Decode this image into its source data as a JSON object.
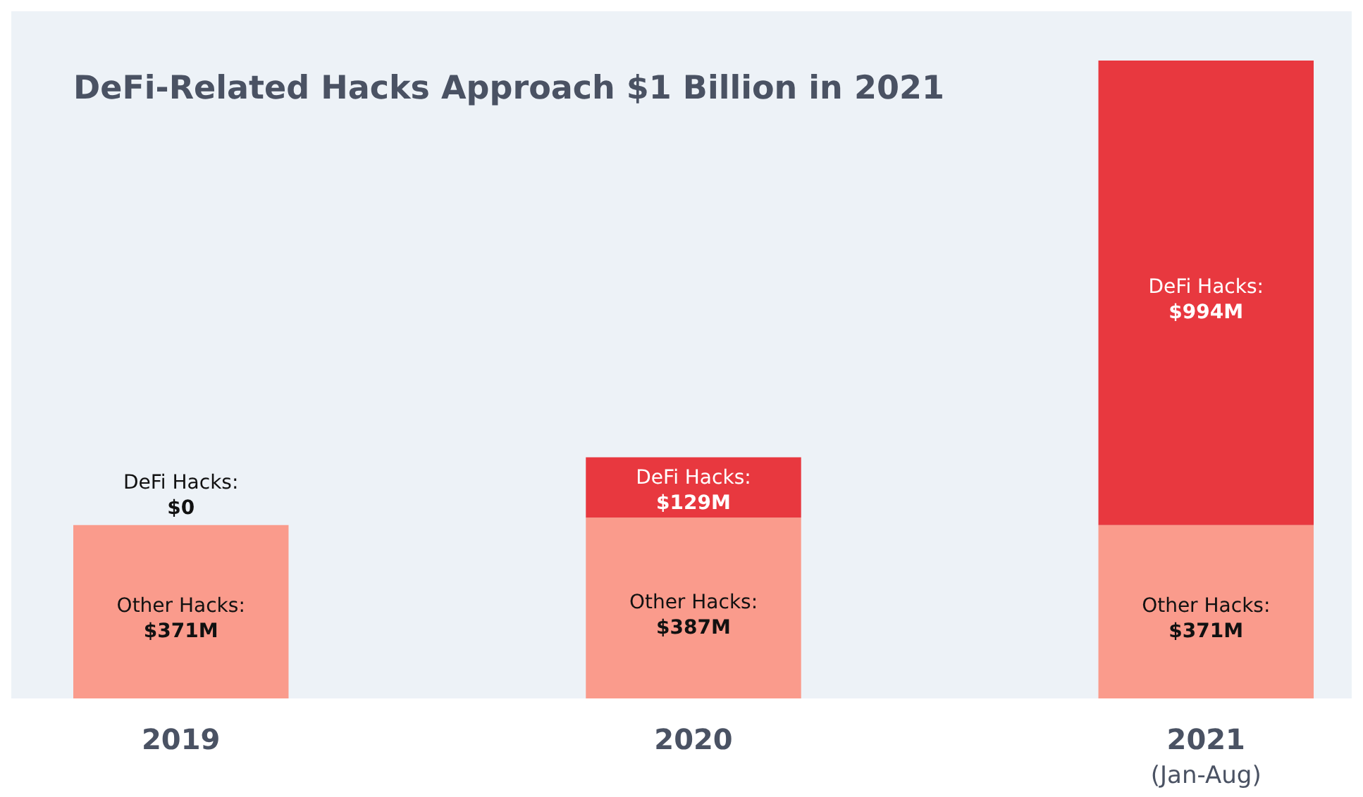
{
  "chart_data": {
    "type": "bar",
    "title": "DeFi-Related Hacks Approach $1 Billion in 2021",
    "categories": [
      "2019",
      "2020",
      "2021\n(Jan-Aug)"
    ],
    "stacked": true,
    "legend": false,
    "series": [
      {
        "name": "Other Hacks:",
        "color": "#fa9b8c",
        "values": [
          371,
          387,
          371
        ],
        "value_labels": [
          "$371M",
          "$387M",
          "$371M"
        ]
      },
      {
        "name": "DeFi Hacks:",
        "color": "#e8383f",
        "values": [
          0,
          129,
          994
        ],
        "value_labels": [
          "$0",
          "$129M",
          "$994M"
        ]
      }
    ]
  }
}
